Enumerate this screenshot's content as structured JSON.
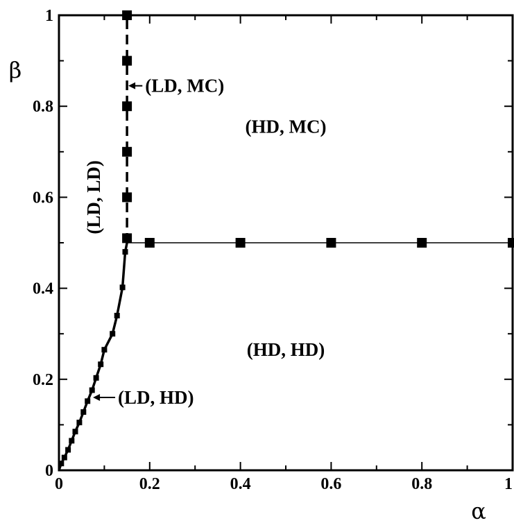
{
  "chart_data": {
    "type": "scatter",
    "xlabel": "α",
    "ylabel": "β",
    "xlim": [
      0,
      1
    ],
    "ylim": [
      0,
      1
    ],
    "x_ticks": [
      "0",
      "0.2",
      "0.4",
      "0.6",
      "0.8",
      "1"
    ],
    "y_ticks": [
      "0",
      "0.2",
      "0.4",
      "0.6",
      "0.8",
      "1"
    ],
    "grid": false,
    "series": [
      {
        "marker": "square-small",
        "line": "solid",
        "points": [
          [
            0.005,
            0.015
          ],
          [
            0.012,
            0.028
          ],
          [
            0.02,
            0.045
          ],
          [
            0.028,
            0.065
          ],
          [
            0.036,
            0.085
          ],
          [
            0.045,
            0.105
          ],
          [
            0.054,
            0.128
          ],
          [
            0.063,
            0.152
          ],
          [
            0.073,
            0.176
          ],
          [
            0.082,
            0.203
          ],
          [
            0.092,
            0.233
          ],
          [
            0.1,
            0.265
          ],
          [
            0.118,
            0.3
          ],
          [
            0.128,
            0.34
          ],
          [
            0.14,
            0.402
          ],
          [
            0.146,
            0.48
          ]
        ]
      },
      {
        "marker": "square",
        "line": "dashed",
        "points": [
          [
            0.15,
            0.51
          ],
          [
            0.15,
            0.6
          ],
          [
            0.15,
            0.7
          ],
          [
            0.15,
            0.8
          ],
          [
            0.15,
            0.9
          ],
          [
            0.15,
            1.0
          ]
        ]
      },
      {
        "marker": "square",
        "line": "solid-thin",
        "points": [
          [
            0.15,
            0.5
          ],
          [
            0.2,
            0.5
          ],
          [
            0.4,
            0.5
          ],
          [
            0.6,
            0.5
          ],
          [
            0.8,
            0.5
          ],
          [
            1.0,
            0.5
          ]
        ]
      }
    ],
    "annotations": [
      {
        "text": "(LD, MC)",
        "x": 0.19,
        "y": 0.845,
        "arrow_to": [
          0.153,
          0.845
        ],
        "rotate": false
      },
      {
        "text": "(HD, MC)",
        "x": 0.5,
        "y": 0.755,
        "rotate": false
      },
      {
        "text": "(LD, LD)",
        "x": 0.09,
        "y": 0.6,
        "rotate": true
      },
      {
        "text": "(HD, HD)",
        "x": 0.5,
        "y": 0.265,
        "rotate": false
      },
      {
        "text": "(LD, HD)",
        "x": 0.13,
        "y": 0.16,
        "arrow_to": [
          0.075,
          0.16
        ],
        "rotate": false
      }
    ]
  }
}
